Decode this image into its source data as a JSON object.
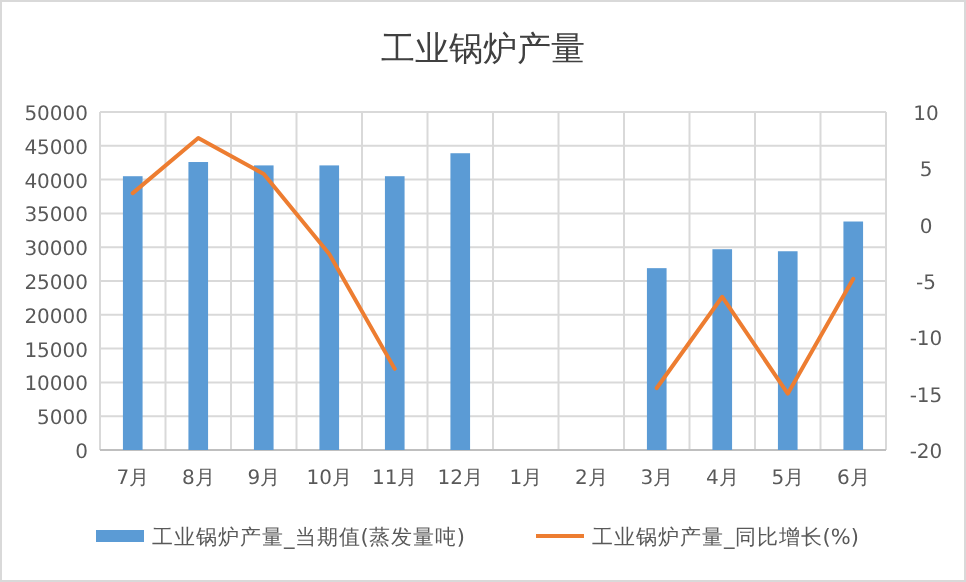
{
  "chart_data": {
    "type": "bar",
    "title": "工业锅炉产量",
    "categories": [
      "7月",
      "8月",
      "9月",
      "10月",
      "11月",
      "12月",
      "1月",
      "2月",
      "3月",
      "4月",
      "5月",
      "6月"
    ],
    "series": [
      {
        "name": "工业锅炉产量_当期值(蒸发量吨)",
        "color": "#5b9bd5",
        "values": [
          40500,
          42600,
          42100,
          42100,
          40500,
          43900,
          null,
          null,
          26900,
          29700,
          29400,
          33800
        ]
      },
      {
        "name": "工业锅炉产量_同比增长(%)",
        "type": "line",
        "axis": "y2",
        "color": "#ed7d31",
        "values": [
          2.8,
          7.7,
          4.5,
          -2.6,
          -12.8,
          null,
          null,
          null,
          -14.5,
          -6.4,
          -15.0,
          -4.8
        ]
      }
    ],
    "ylim": [
      0,
      50000
    ],
    "yticks": [
      0,
      5000,
      10000,
      15000,
      20000,
      25000,
      30000,
      35000,
      40000,
      45000,
      50000
    ],
    "y2lim": [
      -20,
      10
    ],
    "y2ticks": [
      -20,
      -15,
      -10,
      -5,
      0,
      5,
      10
    ],
    "grid": true,
    "legend": "bottom"
  }
}
